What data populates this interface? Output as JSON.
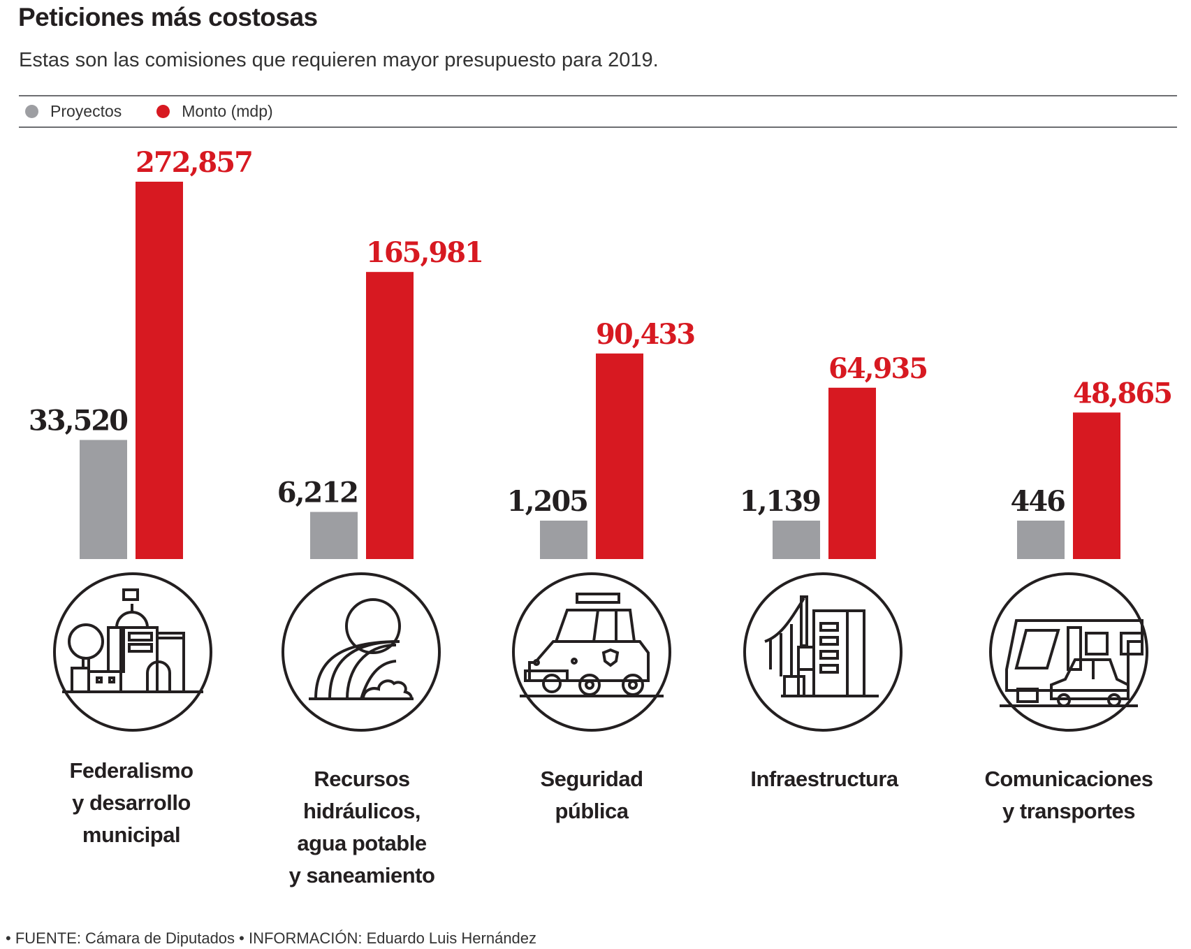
{
  "chart_data": {
    "type": "bar",
    "title": "Peticiones más costosas",
    "subtitle": "Estas son las comisiones que requieren mayor presupuesto para 2019.",
    "categories": [
      "Federalismo y desarrollo municipal",
      "Recursos hidráulicos, agua potable y saneamiento",
      "Seguridad pública",
      "Infraestructura",
      "Comunicaciones y transportes"
    ],
    "category_lines": [
      [
        "Federalismo",
        "y desarrollo",
        "municipal"
      ],
      [
        "Recursos",
        "hidráulicos,",
        "agua potable",
        "y saneamiento"
      ],
      [
        "Seguridad",
        "pública"
      ],
      [
        "Infraestructura"
      ],
      [
        "Comunicaciones",
        "y transportes"
      ]
    ],
    "series": [
      {
        "name": "Proyectos",
        "color": "#9d9ea2",
        "label_color": "#231f20",
        "values": [
          33520,
          6212,
          1205,
          1139,
          446
        ],
        "labels": [
          "33,520",
          "6,212",
          "1,205",
          "1,139",
          "446"
        ]
      },
      {
        "name": "Monto (mdp)",
        "color": "#d71921",
        "label_color": "#d71921",
        "values": [
          272857,
          165981,
          90433,
          64935,
          48865
        ],
        "labels": [
          "272,857",
          "165,981",
          "90,433",
          "64,935",
          "48,865"
        ]
      }
    ],
    "legend_position": "top-left",
    "xlabel": "",
    "ylabel": "",
    "grid": false,
    "note": "Bar heights are not to a single linear scale in the original graphic"
  },
  "icons": [
    "city-hall-icon",
    "waterfall-icon",
    "police-car-icon",
    "bridge-building-icon",
    "train-car-icon"
  ],
  "footer": "• FUENTE: Cámara de Diputados • INFORMACIÓN: Eduardo Luis Hernández"
}
